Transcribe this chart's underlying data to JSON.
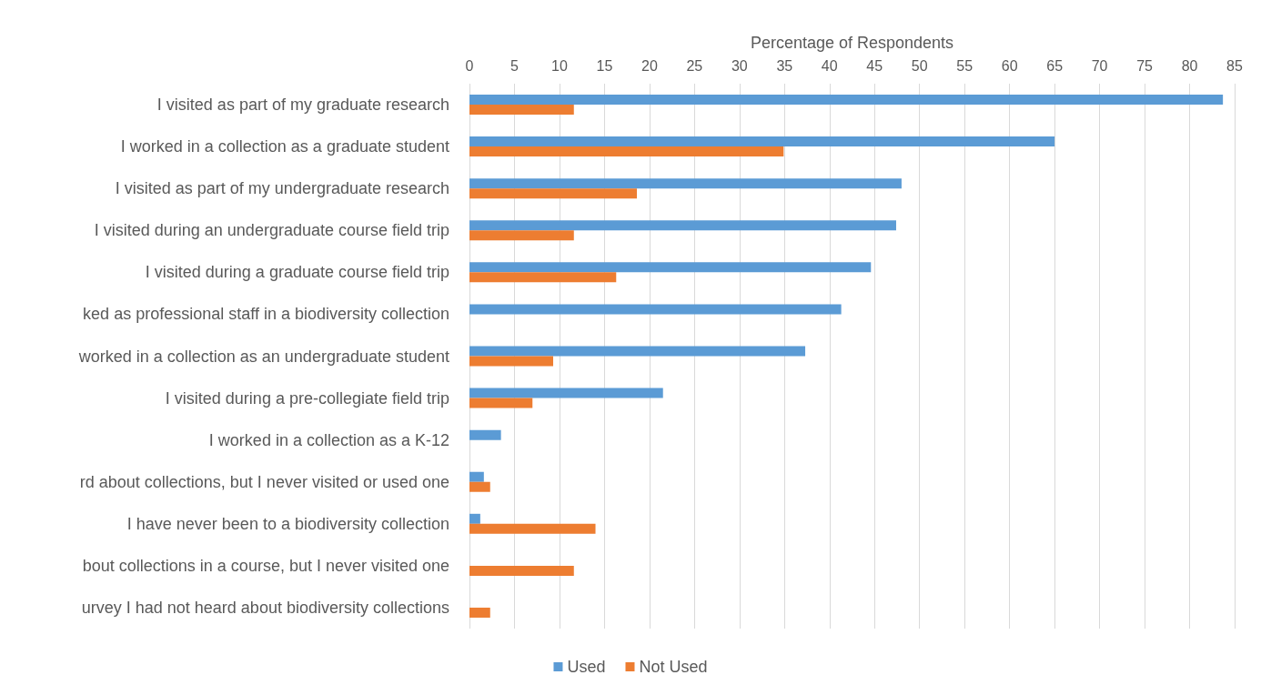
{
  "chart_data": {
    "type": "bar",
    "orientation": "horizontal",
    "xlabel": "Percentage of Respondents",
    "categories": [
      "I visited as part of my graduate research",
      "I worked in a collection as a graduate student",
      "I visited as part of my undergraduate research",
      "I visited during an undergraduate course field trip",
      "I visited during a graduate course field trip",
      "ked as professional staff in a biodiversity collection",
      "worked in a collection as an undergraduate student",
      "I visited during a pre-collegiate field trip",
      "I worked in a collection as a K-12",
      "rd about collections, but I never visited or used one",
      "I have never been to a biodiversity collection",
      "bout collections in a course, but I never visited one",
      "urvey I had not heard about biodiversity collections"
    ],
    "series": [
      {
        "name": "Used",
        "color": "#5b9bd5",
        "values": [
          83.7,
          65.0,
          48.0,
          47.4,
          44.6,
          41.3,
          37.3,
          21.5,
          3.5,
          1.6,
          1.2,
          null,
          null
        ]
      },
      {
        "name": "Not Used",
        "color": "#ed7d31",
        "values": [
          11.6,
          34.9,
          18.6,
          11.6,
          16.3,
          null,
          9.3,
          7.0,
          null,
          2.3,
          14.0,
          11.6,
          2.3
        ]
      }
    ],
    "xlim": [
      0,
      85
    ],
    "xticks": [
      0,
      5,
      10,
      15,
      20,
      25,
      30,
      35,
      40,
      45,
      50,
      55,
      60,
      65,
      70,
      75,
      80,
      85
    ],
    "grid": "x",
    "legend": "bottom"
  }
}
